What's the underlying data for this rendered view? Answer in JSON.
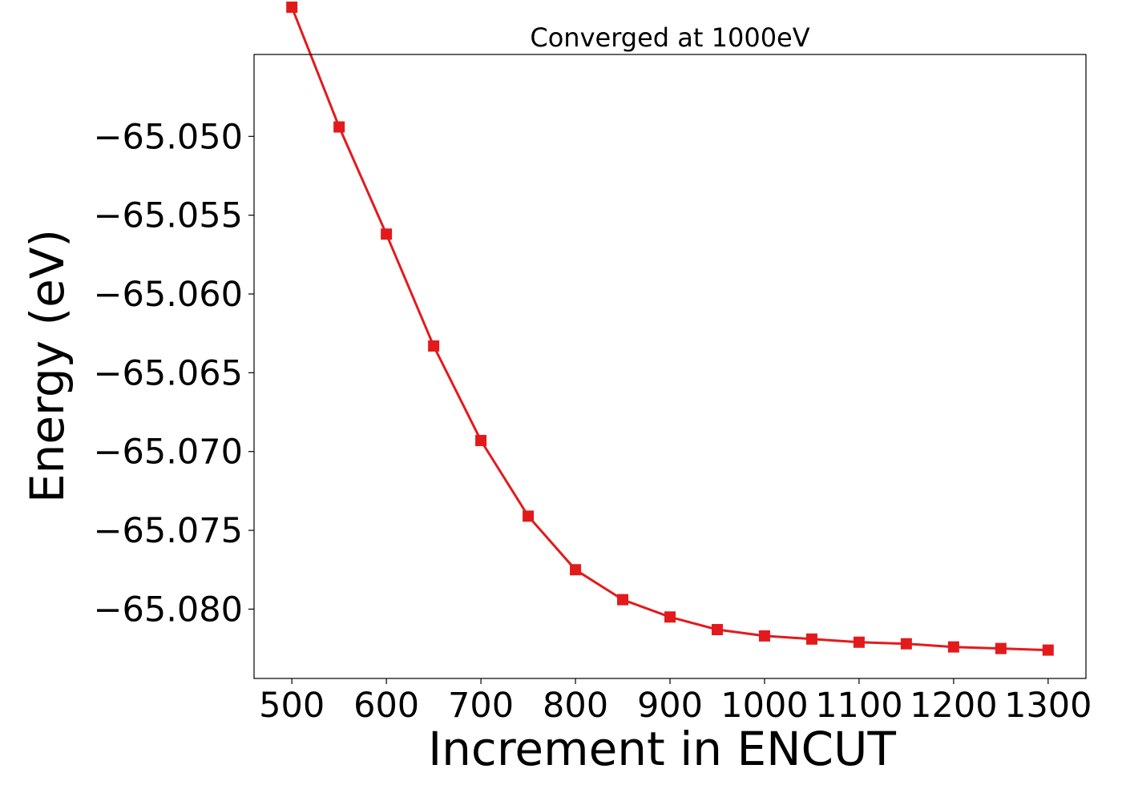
{
  "chart_data": {
    "type": "line",
    "title": "Converged at 1000eV",
    "xlabel": "Increment in ENCUT",
    "ylabel": "Energy (eV)",
    "x": [
      500,
      550,
      600,
      650,
      700,
      750,
      800,
      850,
      900,
      950,
      1000,
      1050,
      1100,
      1150,
      1200,
      1250,
      1300
    ],
    "series": [
      {
        "values": [
          -65.0418,
          -65.0494,
          -65.0562,
          -65.0633,
          -65.0693,
          -65.0741,
          -65.0775,
          -65.0794,
          -65.0805,
          -65.0813,
          -65.0817,
          -65.0819,
          -65.0821,
          -65.0822,
          -65.0824,
          -65.0825,
          -65.0826
        ]
      }
    ],
    "xticks": [
      500,
      600,
      700,
      800,
      900,
      1000,
      1100,
      1200,
      1300
    ],
    "xtick_labels": [
      "500",
      "600",
      "700",
      "800",
      "900",
      "1000",
      "1100",
      "1200",
      "1300"
    ],
    "yticks": [
      -65.05,
      -65.055,
      -65.06,
      -65.065,
      -65.07,
      -65.075,
      -65.08
    ],
    "ytick_labels": [
      "−65.050",
      "−65.055",
      "−65.060",
      "−65.065",
      "−65.070",
      "−65.075",
      "−65.080"
    ],
    "xlim": [
      460,
      1340
    ],
    "ylim": [
      -65.0844,
      -65.0448
    ],
    "grid": false,
    "legend": "none",
    "line_color": "#e31a1c",
    "marker": "square"
  }
}
